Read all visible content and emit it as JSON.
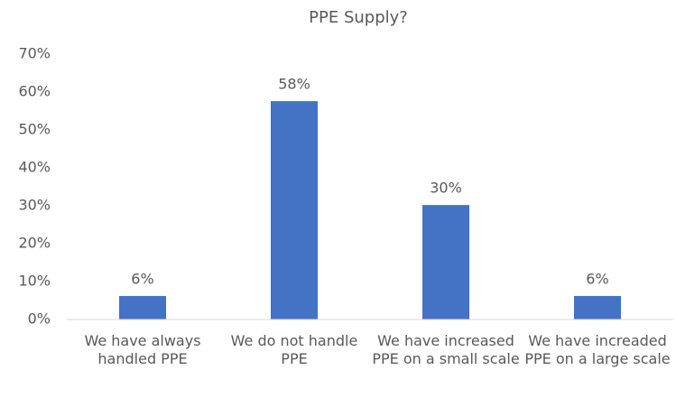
{
  "chart_data": {
    "type": "bar",
    "title": "PPE Supply?",
    "categories": [
      "We have always handled PPE",
      "We do not handle PPE",
      "We have increased PPE on a small scale",
      "We have increaded PPE on a large scale"
    ],
    "values": [
      6.2,
      57.6,
      30.2,
      6.2
    ],
    "value_labels": [
      "6%",
      "58%",
      "30%",
      "6%"
    ],
    "color": "#4472c4",
    "ylim": [
      0,
      70
    ],
    "yticks": [
      {
        "value": 0,
        "label": "0%"
      },
      {
        "value": 10,
        "label": "10%"
      },
      {
        "value": 20,
        "label": "20%"
      },
      {
        "value": 30,
        "label": "30%"
      },
      {
        "value": 40,
        "label": "40%"
      },
      {
        "value": 50,
        "label": "50%"
      },
      {
        "value": 60,
        "label": "60%"
      },
      {
        "value": 70,
        "label": "70%"
      }
    ],
    "grid": false
  }
}
